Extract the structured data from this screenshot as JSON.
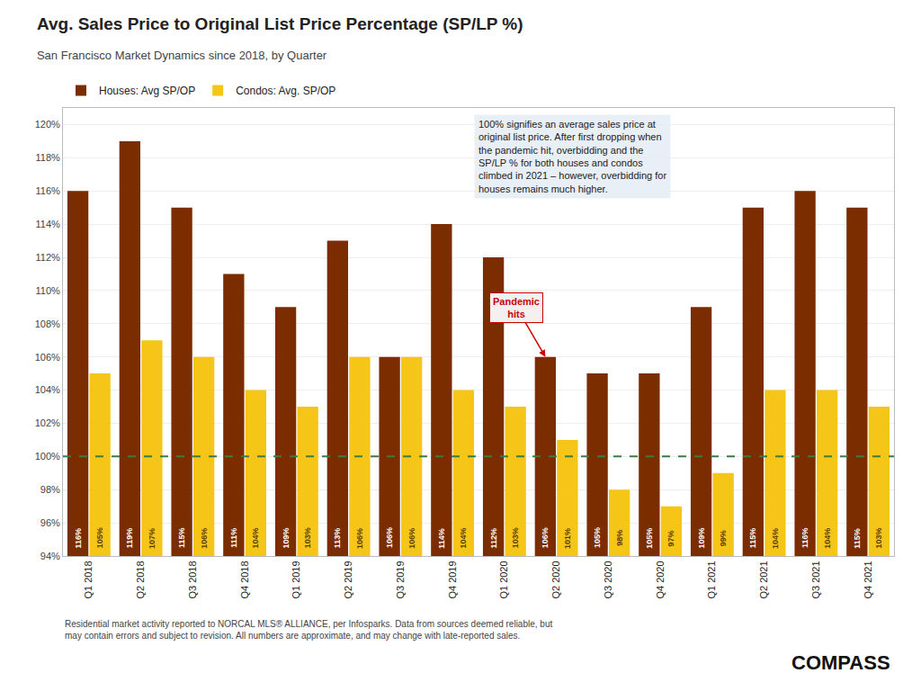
{
  "chart_data": {
    "type": "bar",
    "title": "Avg. Sales Price to Original List Price Percentage (SP/LP %)",
    "subtitle": "San Francisco Market Dynamics since 2018, by Quarter",
    "categories": [
      "Q1 2018",
      "Q2 2018",
      "Q3 2018",
      "Q4 2018",
      "Q1 2019",
      "Q2 2019",
      "Q3 2019",
      "Q4 2019",
      "Q1 2020",
      "Q2 2020",
      "Q3 2020",
      "Q4 2020",
      "Q1 2021",
      "Q2 2021",
      "Q3 2021",
      "Q4 2021"
    ],
    "series": [
      {
        "name": "Houses: Avg SP/OP",
        "color": "#7B2D00",
        "values": [
          116,
          119,
          115,
          111,
          109,
          113,
          106,
          114,
          112,
          106,
          105,
          105,
          109,
          115,
          116,
          115
        ],
        "value_labels": [
          "116%",
          "119%",
          "115%",
          "111%",
          "109%",
          "113%",
          "106%",
          "114%",
          "112%",
          "106%",
          "105%",
          "105%",
          "109%",
          "115%",
          "116%",
          "115%"
        ]
      },
      {
        "name": "Condos: Avg. SP/OP",
        "color": "#F5C518",
        "values": [
          105,
          107,
          106,
          104,
          103,
          106,
          106,
          104,
          103,
          101,
          98,
          97,
          99,
          104,
          104,
          103
        ],
        "value_labels": [
          "105%",
          "107%",
          "106%",
          "104%",
          "103%",
          "106%",
          "106%",
          "104%",
          "103%",
          "101%",
          "98%",
          "97%",
          "99%",
          "104%",
          "104%",
          "103%"
        ]
      }
    ],
    "ylim": [
      94,
      121
    ],
    "yticks": [
      {
        "value": 94,
        "label": "94%"
      },
      {
        "value": 96,
        "label": "96%"
      },
      {
        "value": 98,
        "label": "98%"
      },
      {
        "value": 100,
        "label": "100%"
      },
      {
        "value": 102,
        "label": "102%"
      },
      {
        "value": 104,
        "label": "104%"
      },
      {
        "value": 106,
        "label": "106%"
      },
      {
        "value": 108,
        "label": "108%"
      },
      {
        "value": 110,
        "label": "110%"
      },
      {
        "value": 112,
        "label": "112%"
      },
      {
        "value": 114,
        "label": "114%"
      },
      {
        "value": 116,
        "label": "116%"
      },
      {
        "value": 118,
        "label": "118%"
      },
      {
        "value": 120,
        "label": "120%"
      }
    ],
    "grid": true,
    "legend": "upper left",
    "data_labels": true,
    "reference_line": {
      "y": 100,
      "color": "#3A7D44",
      "line_style": "dashed"
    },
    "annotations": [
      {
        "text": "100% signifies an average sales price at\noriginal list price. After first dropping when\nthe pandemic hit, overbidding and the\nSP/LP % for both houses and condos\nclimbed in 2021 – however, overbidding for\nhouses remains much higher."
      },
      {
        "text": "Pandemic\nhits",
        "x": "Q2 2020",
        "series": "Houses: Avg SP/OP",
        "color": "#cc0000"
      }
    ],
    "footer": "Residential market activity reported to NORCAL MLS® ALLIANCE, per Infosparks. Data from sources deemed reliable, but\nmay contain errors and subject to revision. All numbers are approximate, and may change with late-reported sales.",
    "logo": "COMPASS"
  }
}
